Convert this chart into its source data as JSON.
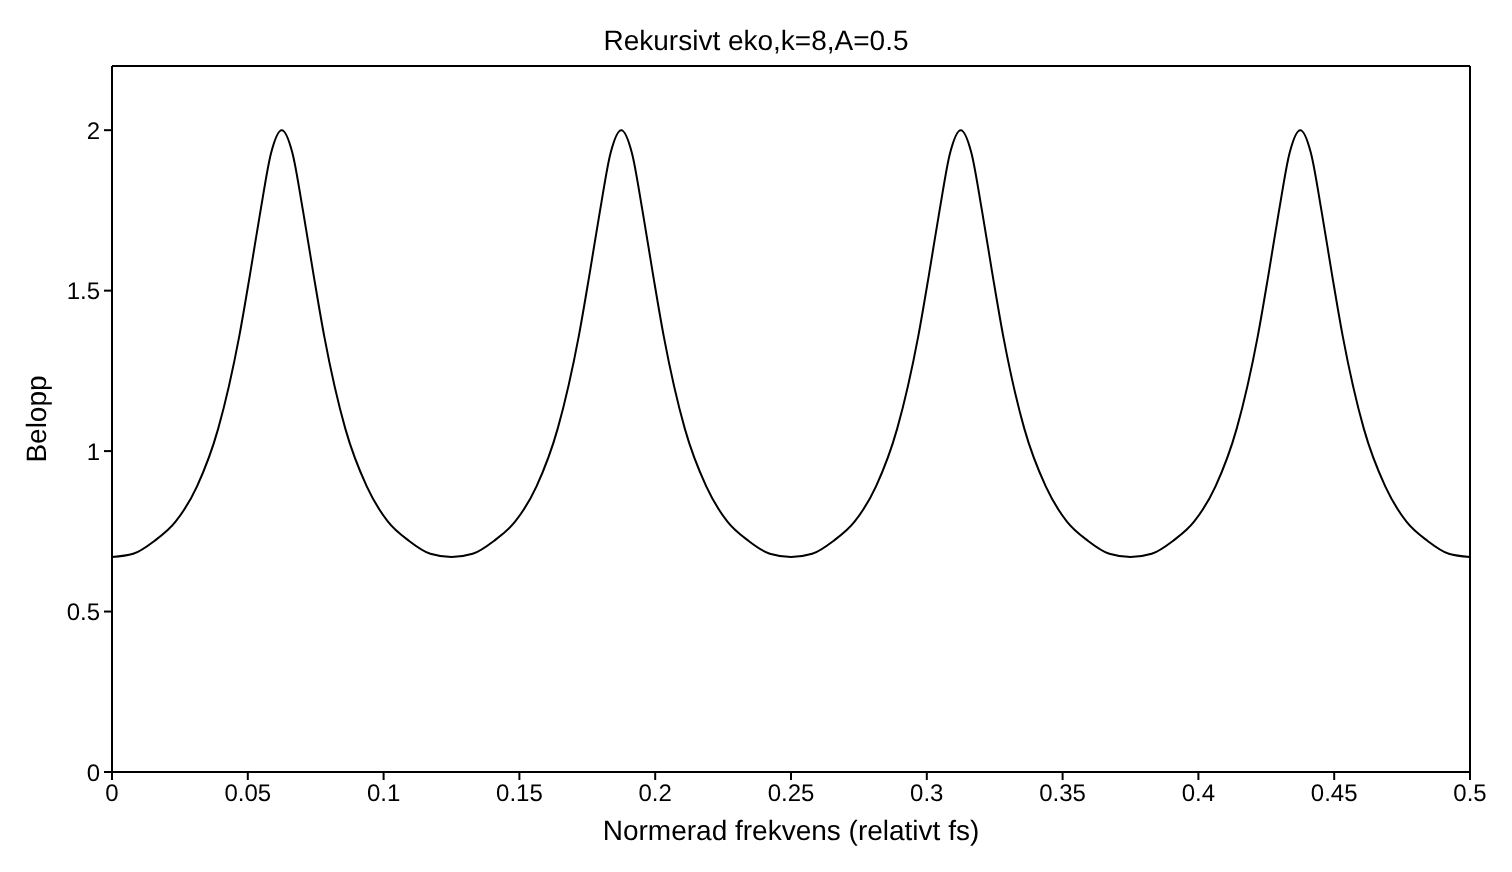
{
  "chart_data": {
    "type": "line",
    "title": "Rekursivt eko,k=8,A=0.5",
    "xlabel": "Normerad frekvens (relativt fs)",
    "ylabel": "Belopp",
    "x": [
      0,
      0.0078,
      0.0156,
      0.0234,
      0.0313,
      0.0391,
      0.0469,
      0.0508,
      0.0547,
      0.0586,
      0.0625,
      0.0664,
      0.0703,
      0.0742,
      0.0781,
      0.0859,
      0.0938,
      0.1016,
      0.1094,
      0.1172,
      0.125,
      0.1328,
      0.1406,
      0.1484,
      0.1563,
      0.1641,
      0.1719,
      0.1758,
      0.1797,
      0.1836,
      0.1875,
      0.1914,
      0.1953,
      0.1992,
      0.2031,
      0.2109,
      0.2188,
      0.2266,
      0.2344,
      0.2422,
      0.25,
      0.2578,
      0.2656,
      0.2734,
      0.2813,
      0.2891,
      0.2969,
      0.3008,
      0.3047,
      0.3086,
      0.3125,
      0.3164,
      0.3203,
      0.3242,
      0.3281,
      0.3359,
      0.3438,
      0.3516,
      0.3594,
      0.3672,
      0.375,
      0.3828,
      0.3906,
      0.3984,
      0.4063,
      0.4141,
      0.4219,
      0.4258,
      0.4297,
      0.4336,
      0.4375,
      0.4414,
      0.4453,
      0.4492,
      0.4531,
      0.4609,
      0.4688,
      0.4766,
      0.4844,
      0.4922,
      0.5
    ],
    "series": [
      {
        "color": "#000000",
        "values": [
          0.67,
          0.68,
          0.72,
          0.78,
          0.89,
          1.07,
          1.36,
          1.55,
          1.75,
          1.93,
          2,
          1.93,
          1.75,
          1.55,
          1.36,
          1.07,
          0.89,
          0.78,
          0.72,
          0.68,
          0.67,
          0.68,
          0.72,
          0.78,
          0.89,
          1.07,
          1.36,
          1.55,
          1.75,
          1.93,
          2,
          1.93,
          1.75,
          1.55,
          1.36,
          1.07,
          0.89,
          0.78,
          0.72,
          0.68,
          0.67,
          0.68,
          0.72,
          0.78,
          0.89,
          1.07,
          1.36,
          1.55,
          1.75,
          1.93,
          2,
          1.93,
          1.75,
          1.55,
          1.36,
          1.07,
          0.89,
          0.78,
          0.72,
          0.68,
          0.67,
          0.68,
          0.72,
          0.78,
          0.89,
          1.07,
          1.36,
          1.55,
          1.75,
          1.93,
          2,
          1.93,
          1.75,
          1.55,
          1.36,
          1.07,
          0.89,
          0.78,
          0.72,
          0.68,
          0.67
        ]
      }
    ],
    "xlim": [
      0,
      0.5
    ],
    "xticks": [
      0,
      0.05,
      0.1,
      0.15,
      0.2,
      0.25,
      0.3,
      0.35,
      0.4,
      0.45,
      0.5
    ],
    "ylim": [
      0,
      2.2
    ],
    "yticks": [
      0,
      0.5,
      1,
      1.5,
      2
    ],
    "grid": false,
    "legend": false
  }
}
